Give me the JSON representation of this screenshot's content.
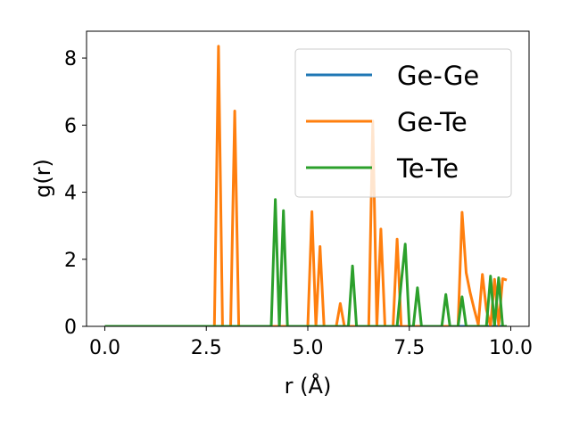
{
  "chart_data": {
    "type": "line",
    "xlabel": "r (Å)",
    "ylabel": "g(r)",
    "xlim": [
      -0.45,
      10.45
    ],
    "ylim": [
      0,
      8.8
    ],
    "xticks": [
      0.0,
      2.5,
      5.0,
      7.5,
      10.0
    ],
    "xtick_labels": [
      "0.0",
      "2.5",
      "5.0",
      "7.5",
      "10.0"
    ],
    "yticks": [
      0,
      2,
      4,
      6,
      8
    ],
    "ytick_labels": [
      "0",
      "2",
      "4",
      "6",
      "8"
    ],
    "grid": false,
    "legend_position": "top-right",
    "series": [
      {
        "name": "Ge-Ge",
        "color": "#1f77b4",
        "x": [
          0.0,
          9.9
        ],
        "y": [
          0.0,
          0.0
        ]
      },
      {
        "name": "Ge-Te",
        "color": "#ff7f0e",
        "x": [
          0.0,
          2.7,
          2.8,
          2.9,
          3.1,
          3.2,
          3.3,
          5.0,
          5.1,
          5.2,
          5.3,
          5.4,
          5.7,
          5.8,
          5.9,
          6.5,
          6.6,
          6.7,
          6.8,
          6.9,
          7.0,
          7.1,
          7.2,
          7.3,
          8.7,
          8.8,
          8.9,
          9.0,
          9.1,
          9.2,
          9.3,
          9.4,
          9.5,
          9.6,
          9.7,
          9.8,
          9.9
        ],
        "y": [
          0.0,
          0.0,
          8.35,
          0.0,
          0.0,
          6.42,
          0.0,
          0.0,
          3.42,
          0.0,
          2.38,
          0.0,
          0.0,
          0.68,
          0.0,
          0.0,
          6.12,
          0.0,
          2.9,
          0.0,
          0.0,
          0.0,
          2.6,
          0.0,
          0.0,
          3.4,
          1.6,
          1.0,
          0.5,
          0.05,
          1.55,
          0.5,
          0.0,
          1.4,
          0.05,
          1.42,
          1.38
        ]
      },
      {
        "name": "Te-Te",
        "color": "#2ca02c",
        "x": [
          0.0,
          4.1,
          4.2,
          4.3,
          4.4,
          4.5,
          6.0,
          6.1,
          6.2,
          7.2,
          7.3,
          7.4,
          7.5,
          7.6,
          7.7,
          7.8,
          8.3,
          8.4,
          8.5,
          8.7,
          8.8,
          8.9,
          9.3,
          9.4,
          9.5,
          9.6,
          9.7,
          9.8,
          9.9
        ],
        "y": [
          0.0,
          0.0,
          3.78,
          0.0,
          3.45,
          0.0,
          0.0,
          1.8,
          0.0,
          0.0,
          1.3,
          2.45,
          0.0,
          0.0,
          1.15,
          0.0,
          0.0,
          0.95,
          0.0,
          0.0,
          0.88,
          0.0,
          0.0,
          0.0,
          1.5,
          0.0,
          1.45,
          0.0,
          0.0
        ]
      }
    ]
  }
}
